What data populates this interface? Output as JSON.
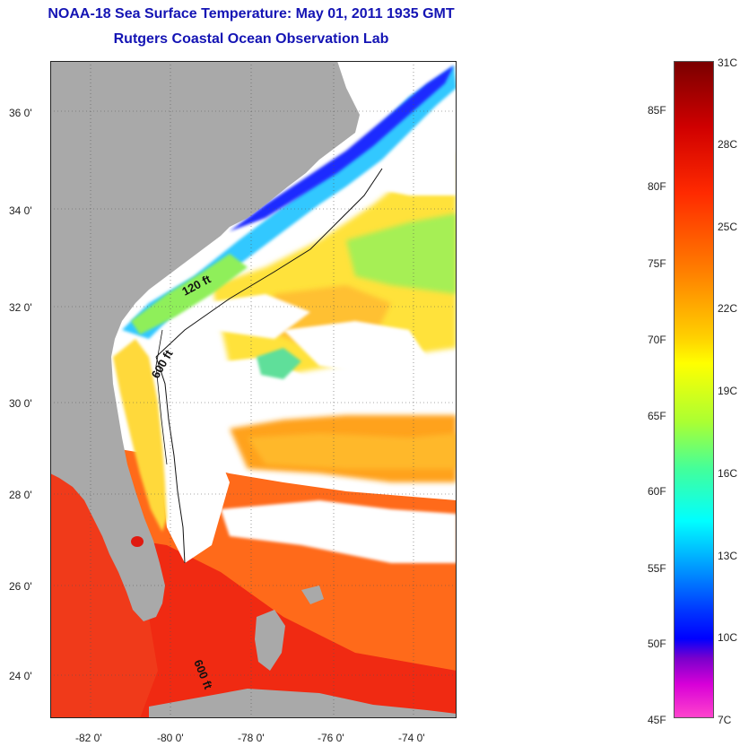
{
  "title": "NOAA-18 Sea Surface Temperature:  May 01, 2011 1935 GMT",
  "subtitle": "Rutgers Coastal Ocean Observation Lab",
  "map": {
    "lat_labels": [
      "36 0'",
      "34 0'",
      "32 0'",
      "30 0'",
      "28 0'",
      "26 0'",
      "24 0'"
    ],
    "lon_labels": [
      "-82 0'",
      "-80 0'",
      "-78 0'",
      "-76 0'",
      "-74 0'"
    ],
    "isobath_labels": [
      "120 ft",
      "600 ft",
      "600 ft"
    ],
    "land_color": "#a9a9a9",
    "cloud_color": "#ffffff"
  },
  "colorbar": {
    "fahrenheit_labels": [
      "85F",
      "80F",
      "75F",
      "70F",
      "65F",
      "60F",
      "55F",
      "50F",
      "45F"
    ],
    "celsius_labels": [
      "31C",
      "28C",
      "25C",
      "22C",
      "19C",
      "16C",
      "13C",
      "10C",
      "7C"
    ]
  }
}
